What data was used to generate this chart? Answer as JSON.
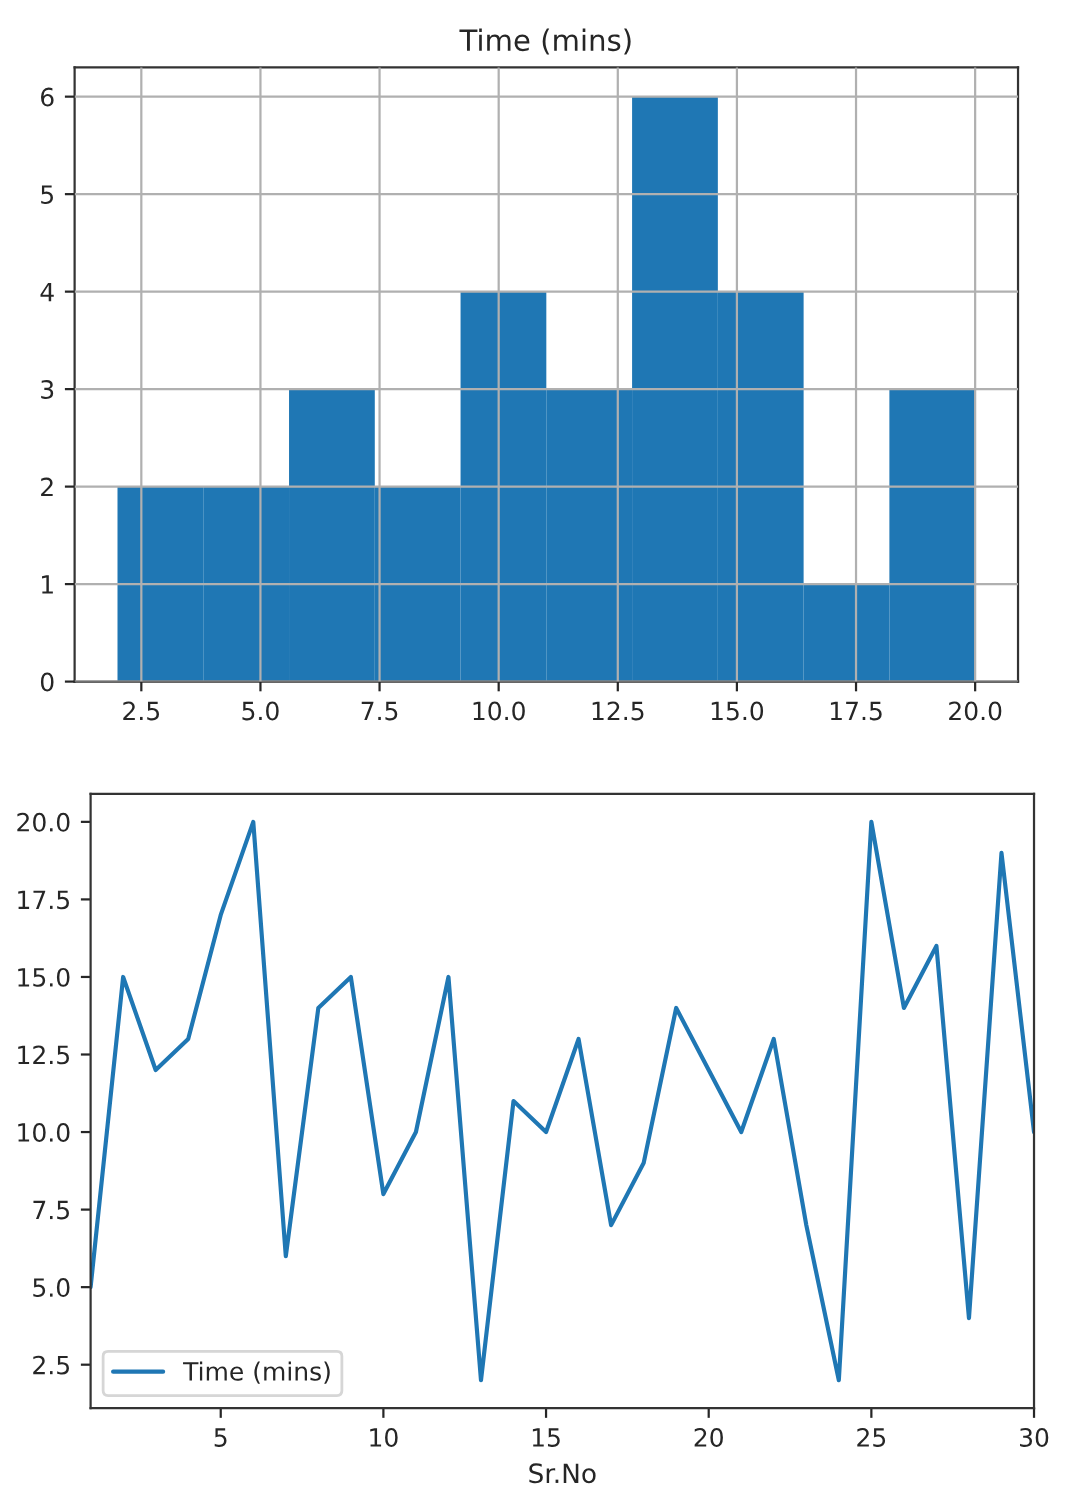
{
  "chart_data": [
    {
      "type": "histogram",
      "title": "Time (mins)",
      "bins": [
        2,
        3.8,
        5.6,
        7.4,
        9.2,
        11,
        12.8,
        14.6,
        16.4,
        18.2,
        20
      ],
      "values": [
        2,
        2,
        3,
        2,
        4,
        3,
        6,
        4,
        1,
        3
      ],
      "color": "#1f77b4",
      "xlim": [
        1.1,
        20.9
      ],
      "xticks": [
        2.5,
        {
          "value": 5,
          "label": "5.0"
        },
        7.5,
        {
          "value": 10,
          "label": "10.0"
        },
        12.5,
        {
          "value": 15,
          "label": "15.0"
        },
        17.5,
        {
          "value": 20,
          "label": "20.0"
        }
      ],
      "ylim": [
        0,
        6.3
      ],
      "yticks": [
        0,
        1,
        2,
        3,
        4,
        5,
        6
      ],
      "grid": true
    },
    {
      "type": "line",
      "xlabel": "Sr.No",
      "x": [
        1,
        2,
        3,
        4,
        5,
        6,
        7,
        8,
        9,
        10,
        11,
        12,
        13,
        14,
        15,
        16,
        17,
        18,
        19,
        20,
        21,
        22,
        23,
        24,
        25,
        26,
        27,
        28,
        29,
        30
      ],
      "series": [
        {
          "name": "Time (mins)",
          "color": "#1f77b4",
          "values": [
            5,
            15,
            12,
            13,
            17,
            20,
            6,
            14,
            15,
            8,
            10,
            15,
            2,
            11,
            10,
            13,
            7,
            9,
            14,
            12,
            10,
            13,
            7,
            2,
            20,
            14,
            16,
            4,
            19,
            10
          ]
        }
      ],
      "xlim": [
        1,
        30
      ],
      "xticks": [
        5,
        10,
        15,
        20,
        25,
        30
      ],
      "ylim": [
        1.1,
        20.9
      ],
      "yticks": [
        2.5,
        {
          "value": 5,
          "label": "5.0"
        },
        7.5,
        {
          "value": 10,
          "label": "10.0"
        },
        12.5,
        {
          "value": 15,
          "label": "15.0"
        },
        17.5,
        {
          "value": 20,
          "label": "20.0"
        }
      ],
      "legend": "lower left",
      "grid": false
    }
  ]
}
